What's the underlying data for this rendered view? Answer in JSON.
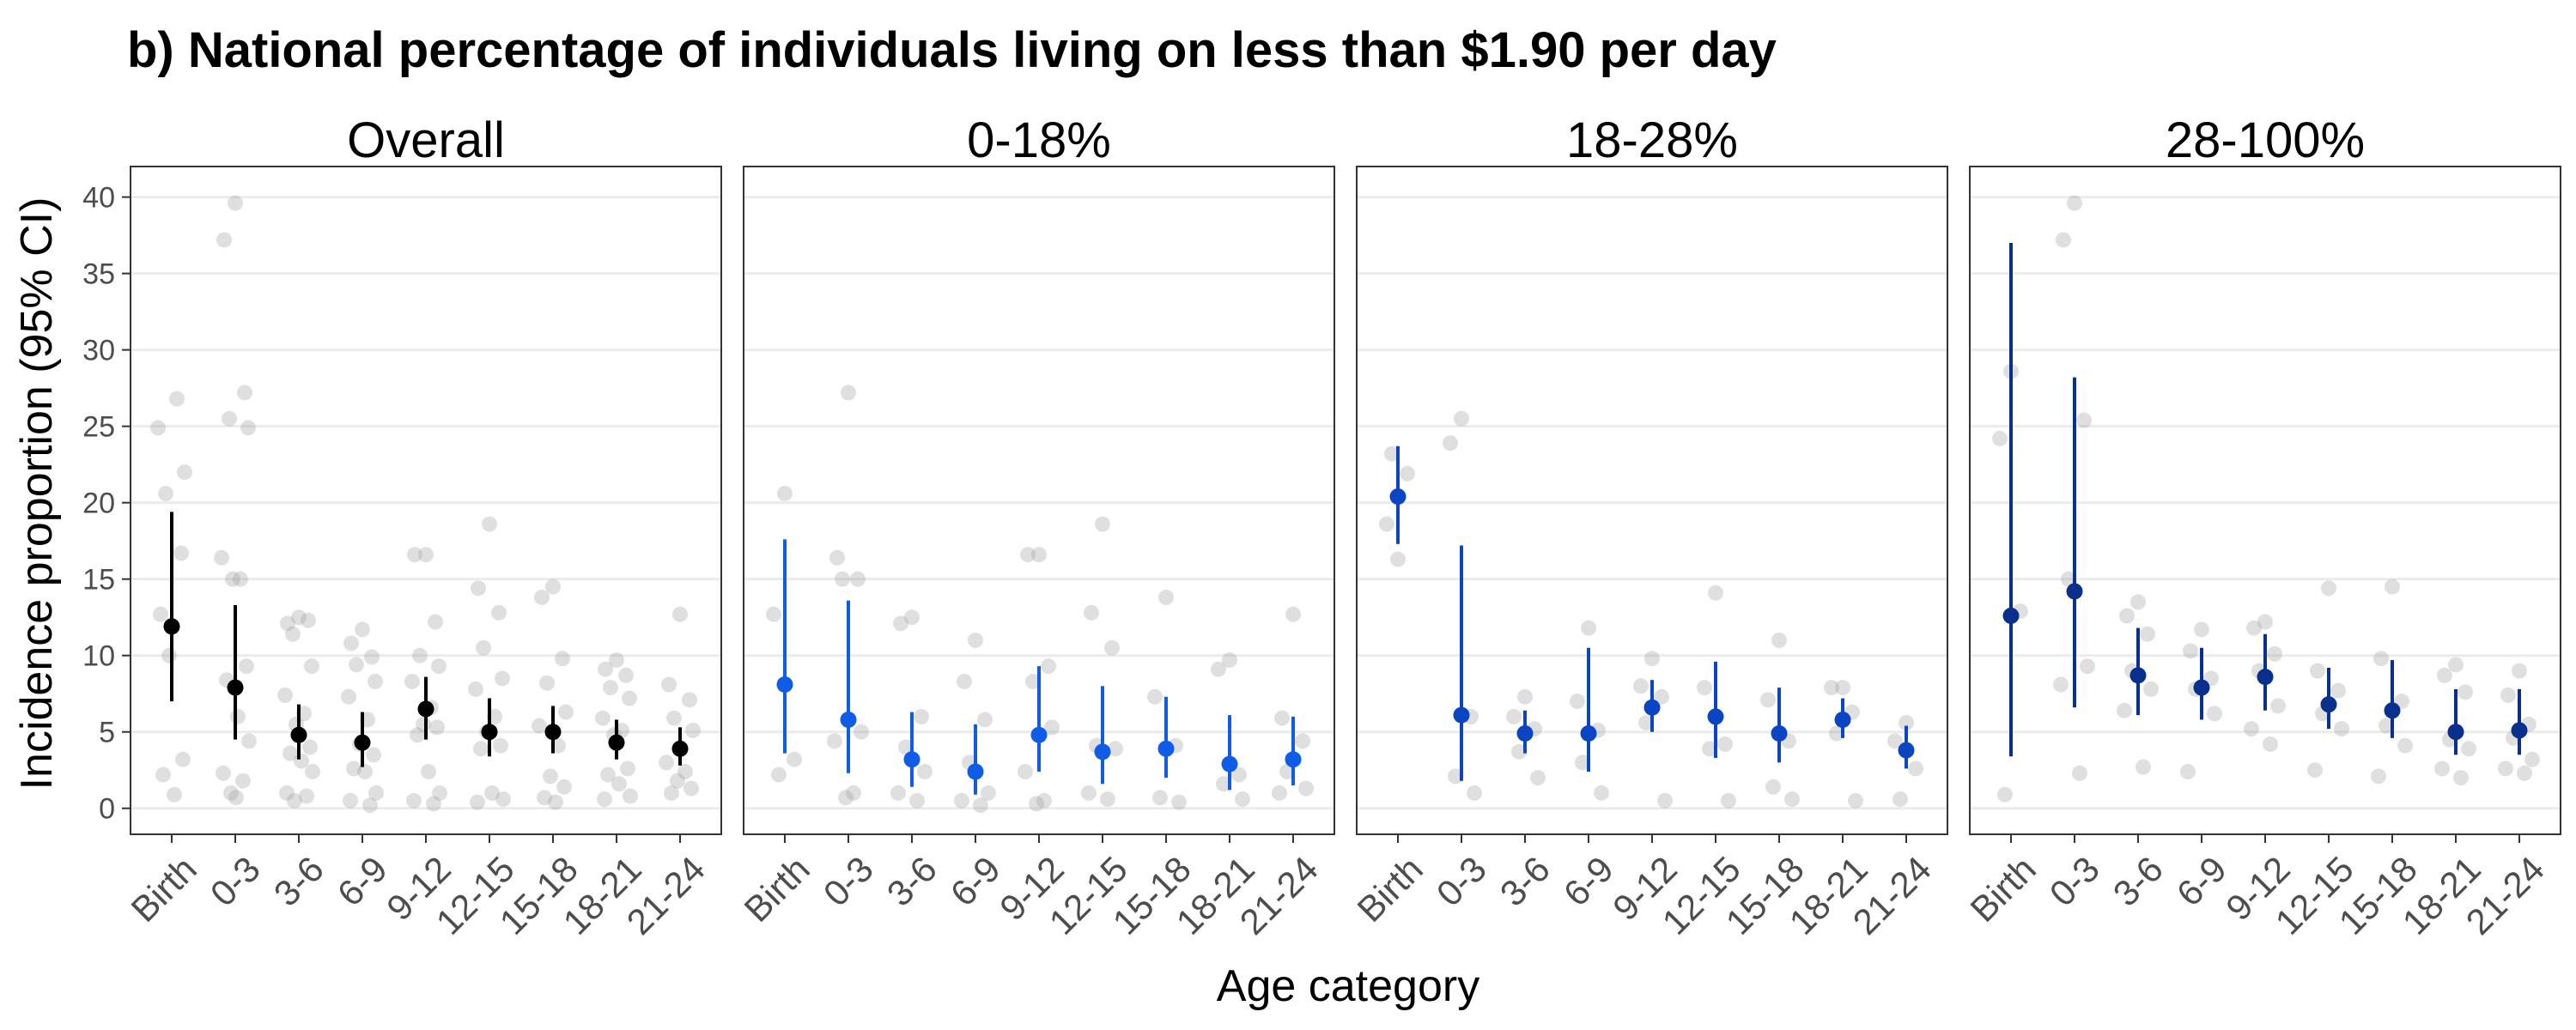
{
  "chart_data": {
    "type": "scatter",
    "title": "b) National percentage of individuals living on less than $1.90 per day",
    "xlabel": "Age category",
    "ylabel": "Incidence proportion (95% CI)",
    "ylim": [
      -1.7,
      42
    ],
    "yticks": [
      0,
      5,
      10,
      15,
      20,
      25,
      30,
      35,
      40
    ],
    "grid": "horizontal major",
    "categories": [
      "Birth",
      "0-3",
      "3-6",
      "6-9",
      "9-12",
      "12-15",
      "15-18",
      "18-21",
      "21-24"
    ],
    "panels": [
      {
        "label": "Overall",
        "color": "#000000",
        "estimates": [
          11.9,
          7.9,
          4.8,
          4.3,
          6.5,
          5.0,
          5.0,
          4.3,
          3.9
        ],
        "ci_low": [
          7.0,
          4.5,
          3.2,
          2.7,
          4.5,
          3.4,
          3.6,
          3.2,
          2.8
        ],
        "ci_high": [
          19.4,
          13.3,
          6.8,
          6.3,
          8.6,
          7.2,
          6.7,
          5.8,
          5.3
        ],
        "raw_points": [
          [
            12.0,
            12.7,
            16.7,
            20.6,
            22.0,
            24.9,
            26.8,
            10.0,
            3.2,
            2.2,
            0.9
          ],
          [
            39.6,
            37.2,
            27.2,
            25.5,
            24.9,
            16.4,
            15.0,
            15.0,
            9.3,
            8.4,
            6.0,
            4.4,
            2.3,
            1.8,
            1.0,
            0.7
          ],
          [
            12.5,
            12.1,
            12.3,
            11.4,
            9.3,
            7.4,
            6.2,
            5.5,
            4.0,
            3.6,
            3.1,
            2.4,
            1.0,
            0.8,
            0.5
          ],
          [
            11.7,
            10.8,
            9.9,
            9.4,
            8.3,
            7.3,
            5.8,
            4.2,
            3.5,
            2.6,
            2.4,
            1.0,
            0.5,
            0.2
          ],
          [
            16.6,
            16.6,
            12.2,
            10.0,
            9.3,
            8.3,
            6.6,
            5.5,
            5.3,
            4.8,
            2.4,
            1.0,
            0.5,
            0.3
          ],
          [
            18.6,
            14.4,
            12.8,
            10.5,
            8.5,
            7.8,
            6.0,
            5.0,
            4.1,
            3.9,
            1.0,
            0.6,
            0.4
          ],
          [
            14.5,
            13.8,
            9.8,
            8.2,
            6.3,
            5.4,
            4.1,
            2.1,
            1.4,
            0.7,
            0.4
          ],
          [
            9.7,
            9.1,
            8.7,
            7.9,
            7.2,
            5.9,
            5.1,
            4.8,
            2.6,
            2.2,
            1.6,
            0.8,
            0.6
          ],
          [
            12.7,
            8.1,
            7.1,
            5.9,
            5.1,
            3.0,
            2.4,
            1.8,
            1.3,
            1.0
          ]
        ]
      },
      {
        "label": "0-18%",
        "color": "#0f5ce6",
        "estimates": [
          8.1,
          5.8,
          3.2,
          2.4,
          4.8,
          3.7,
          3.9,
          2.9,
          3.2
        ],
        "ci_low": [
          3.6,
          2.3,
          1.4,
          0.9,
          2.4,
          1.6,
          2.0,
          1.2,
          1.5
        ],
        "ci_high": [
          17.6,
          13.6,
          6.3,
          5.5,
          9.3,
          8.0,
          7.3,
          6.1,
          6.0
        ],
        "raw_points": [
          [
            20.6,
            12.7,
            3.2,
            2.2
          ],
          [
            27.2,
            16.4,
            15.0,
            15.0,
            5.0,
            4.4,
            1.0,
            0.7
          ],
          [
            12.5,
            12.1,
            6.0,
            4.0,
            2.4,
            1.0,
            0.5
          ],
          [
            11.0,
            8.3,
            5.8,
            3.0,
            1.0,
            0.5,
            0.2
          ],
          [
            16.6,
            16.6,
            9.3,
            8.3,
            5.3,
            2.4,
            0.5,
            0.3
          ],
          [
            18.6,
            12.8,
            10.5,
            4.1,
            3.9,
            1.0,
            0.6
          ],
          [
            13.8,
            7.3,
            4.1,
            0.7,
            0.4
          ],
          [
            9.7,
            9.1,
            2.2,
            1.6,
            0.6
          ],
          [
            12.7,
            5.9,
            4.4,
            2.4,
            1.3,
            1.0
          ]
        ]
      },
      {
        "label": "18-28%",
        "color": "#0b45c4",
        "estimates": [
          20.4,
          6.1,
          4.9,
          4.9,
          6.6,
          6.0,
          4.9,
          5.8,
          3.8
        ],
        "ci_low": [
          17.3,
          1.8,
          3.6,
          2.4,
          5.0,
          3.3,
          3.0,
          4.6,
          2.6
        ],
        "ci_high": [
          23.7,
          17.2,
          6.4,
          10.5,
          8.4,
          9.6,
          7.9,
          7.2,
          5.4
        ],
        "raw_points": [
          [
            16.3,
            18.6,
            21.9,
            23.2
          ],
          [
            25.5,
            23.9,
            6.0,
            2.1,
            1.0
          ],
          [
            7.3,
            6.0,
            5.2,
            3.7,
            2.0
          ],
          [
            11.8,
            7.0,
            5.1,
            3.0,
            1.0
          ],
          [
            9.8,
            8.0,
            7.3,
            5.6,
            0.5
          ],
          [
            14.1,
            7.9,
            4.2,
            3.9,
            0.5
          ],
          [
            11.0,
            7.1,
            4.4,
            1.4,
            0.6
          ],
          [
            7.9,
            7.9,
            6.3,
            4.9,
            0.5
          ],
          [
            5.6,
            4.4,
            2.6,
            0.6
          ]
        ]
      },
      {
        "label": "28-100%",
        "color": "#08308c",
        "estimates": [
          12.6,
          14.2,
          8.7,
          7.9,
          8.6,
          6.8,
          6.4,
          5.0,
          5.1
        ],
        "ci_low": [
          3.4,
          6.6,
          6.1,
          5.8,
          6.4,
          5.2,
          4.6,
          3.5,
          3.5
        ],
        "ci_high": [
          37.0,
          28.2,
          11.8,
          10.5,
          11.4,
          9.2,
          9.7,
          7.8,
          7.8
        ],
        "raw_points": [
          [
            28.6,
            24.2,
            12.9,
            0.9
          ],
          [
            39.6,
            37.2,
            25.4,
            15.0,
            9.3,
            8.1,
            2.3
          ],
          [
            13.5,
            12.6,
            11.4,
            9.0,
            7.8,
            6.4,
            2.7
          ],
          [
            11.7,
            10.3,
            8.5,
            7.8,
            6.2,
            2.4
          ],
          [
            12.2,
            11.8,
            10.1,
            9.0,
            6.7,
            5.2,
            4.2
          ],
          [
            14.4,
            9.0,
            7.7,
            6.2,
            5.2,
            2.5
          ],
          [
            14.5,
            9.8,
            7.0,
            5.4,
            4.1,
            2.1
          ],
          [
            9.4,
            8.7,
            7.6,
            4.5,
            3.9,
            2.6,
            2.0
          ],
          [
            9.0,
            7.4,
            5.5,
            4.6,
            3.2,
            2.6,
            2.3
          ]
        ]
      }
    ]
  }
}
